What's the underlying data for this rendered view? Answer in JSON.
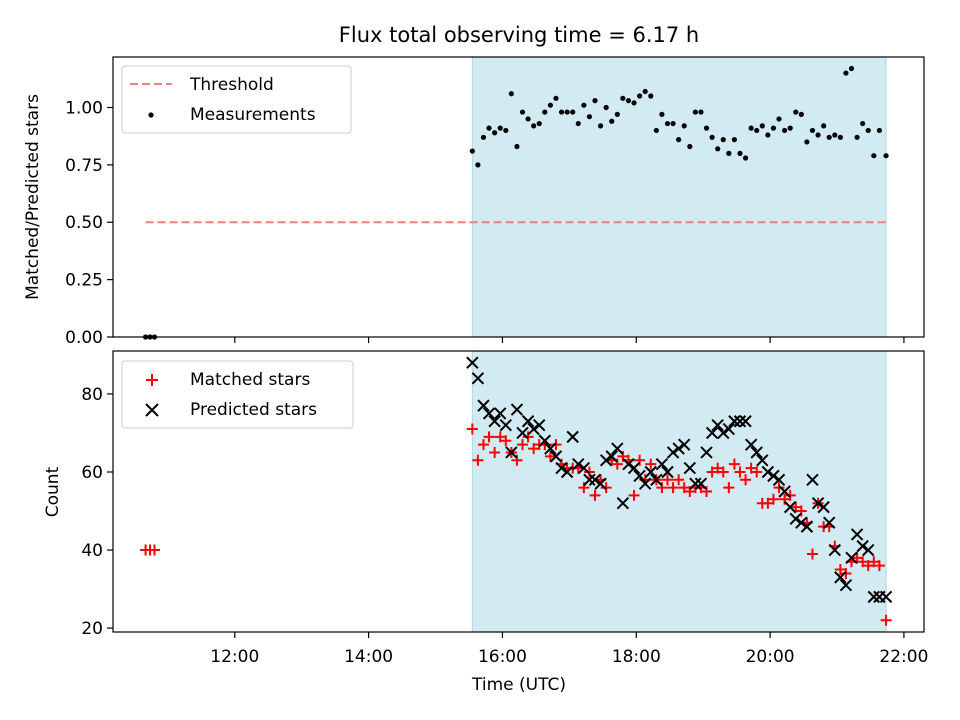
{
  "title": "Flux total observing time = 6.17 h",
  "colors": {
    "threshold": "#f07f7f",
    "measurements": "#000000",
    "matched": "#ff0000",
    "predicted": "#000000",
    "shade": "#add8e6"
  },
  "chart_data": [
    {
      "type": "scatter",
      "ylabel": "Matched/Predicted stars",
      "xlim_hours": [
        10.18,
        22.3
      ],
      "ylim": [
        0,
        1.22
      ],
      "yticks": [
        "0.00",
        "0.25",
        "0.50",
        "0.75",
        "1.00"
      ],
      "yticks_values": [
        0,
        0.25,
        0.5,
        0.75,
        1.0
      ],
      "shaded_span": [
        "15:33",
        "21:44"
      ],
      "legend_position": "upper-left",
      "threshold": {
        "name": "Threshold",
        "y": 0.5,
        "x": [
          "10:40",
          "21:44"
        ]
      },
      "measurements": {
        "name": "Measurements",
        "x": [
          "10:40",
          "10:44",
          "10:48",
          "15:33",
          "15:38",
          "15:43",
          "15:48",
          "15:53",
          "15:58",
          "16:03",
          "16:08",
          "16:13",
          "16:18",
          "16:23",
          "16:28",
          "16:33",
          "16:38",
          "16:43",
          "16:48",
          "16:53",
          "16:58",
          "17:03",
          "17:08",
          "17:13",
          "17:18",
          "17:23",
          "17:28",
          "17:33",
          "17:38",
          "17:43",
          "17:48",
          "17:53",
          "17:58",
          "18:03",
          "18:08",
          "18:13",
          "18:18",
          "18:23",
          "18:28",
          "18:33",
          "18:38",
          "18:43",
          "18:48",
          "18:53",
          "18:58",
          "19:03",
          "19:08",
          "19:13",
          "19:18",
          "19:23",
          "19:28",
          "19:33",
          "19:38",
          "19:43",
          "19:48",
          "19:53",
          "19:58",
          "20:03",
          "20:08",
          "20:13",
          "20:18",
          "20:23",
          "20:28",
          "20:33",
          "20:38",
          "20:43",
          "20:48",
          "20:53",
          "20:58",
          "21:03",
          "21:08",
          "21:13",
          "21:18",
          "21:23",
          "21:28",
          "21:33",
          "21:38",
          "21:44"
        ],
        "y": [
          0,
          0,
          0,
          0.81,
          0.75,
          0.87,
          0.91,
          0.89,
          0.91,
          0.9,
          1.06,
          0.83,
          0.98,
          0.95,
          0.92,
          0.93,
          0.98,
          1.01,
          1.04,
          0.98,
          0.98,
          0.98,
          0.93,
          1.01,
          0.96,
          1.03,
          0.92,
          1.0,
          0.94,
          0.97,
          1.04,
          1.03,
          1.02,
          1.05,
          1.07,
          1.05,
          0.9,
          0.97,
          0.93,
          0.93,
          0.86,
          0.92,
          0.83,
          0.98,
          0.98,
          0.91,
          0.87,
          0.82,
          0.86,
          0.8,
          0.86,
          0.8,
          0.78,
          0.91,
          0.9,
          0.92,
          0.88,
          0.91,
          0.95,
          0.9,
          0.91,
          0.98,
          0.97,
          0.85,
          0.9,
          0.88,
          0.92,
          0.87,
          0.88,
          0.87,
          1.15,
          1.17,
          0.87,
          0.93,
          0.9,
          0.79,
          0.9,
          0.79
        ]
      }
    },
    {
      "type": "scatter",
      "xlabel": "Time (UTC)",
      "ylabel": "Count",
      "xlim_hours": [
        10.18,
        22.3
      ],
      "ylim": [
        19,
        91
      ],
      "xticks": [
        "12:00",
        "14:00",
        "16:00",
        "18:00",
        "20:00",
        "22:00"
      ],
      "xticks_hours": [
        12,
        14,
        16,
        18,
        20,
        22
      ],
      "yticks": [
        "20",
        "40",
        "60",
        "80"
      ],
      "yticks_values": [
        20,
        40,
        60,
        80
      ],
      "shaded_span": [
        "15:33",
        "21:44"
      ],
      "legend_position": "upper-left",
      "series": [
        {
          "name": "Matched stars",
          "x": [
            "10:40",
            "10:44",
            "10:48",
            "15:33",
            "15:38",
            "15:43",
            "15:48",
            "15:53",
            "15:58",
            "16:03",
            "16:08",
            "16:13",
            "16:18",
            "16:23",
            "16:28",
            "16:33",
            "16:38",
            "16:43",
            "16:48",
            "16:53",
            "16:58",
            "17:03",
            "17:08",
            "17:13",
            "17:18",
            "17:23",
            "17:28",
            "17:33",
            "17:38",
            "17:43",
            "17:48",
            "17:53",
            "17:58",
            "18:03",
            "18:08",
            "18:13",
            "18:18",
            "18:23",
            "18:28",
            "18:33",
            "18:38",
            "18:43",
            "18:48",
            "18:53",
            "18:58",
            "19:03",
            "19:08",
            "19:13",
            "19:18",
            "19:23",
            "19:28",
            "19:33",
            "19:38",
            "19:43",
            "19:48",
            "19:53",
            "19:58",
            "20:03",
            "20:08",
            "20:13",
            "20:18",
            "20:23",
            "20:28",
            "20:33",
            "20:38",
            "20:43",
            "20:48",
            "20:53",
            "20:58",
            "21:03",
            "21:08",
            "21:13",
            "21:18",
            "21:23",
            "21:28",
            "21:33",
            "21:38",
            "21:44"
          ],
          "y": [
            40,
            40,
            40,
            71,
            63,
            67,
            69,
            65,
            69,
            68,
            65,
            63,
            67,
            69,
            66,
            67,
            67,
            64,
            67,
            62,
            61,
            61,
            61,
            56,
            60,
            54,
            58,
            56,
            63,
            62,
            64,
            63,
            54,
            63,
            58,
            62,
            58,
            56,
            58,
            56,
            58,
            56,
            55,
            56,
            56,
            55,
            60,
            61,
            60,
            56,
            62,
            60,
            58,
            61,
            60,
            52,
            52,
            53,
            56,
            53,
            54,
            51,
            50,
            47,
            39,
            52,
            46,
            46,
            41,
            35,
            34,
            37,
            38,
            37,
            36,
            37,
            36,
            22
          ]
        },
        {
          "name": "Predicted stars",
          "x": [
            "15:33",
            "15:38",
            "15:43",
            "15:48",
            "15:53",
            "15:58",
            "16:03",
            "16:08",
            "16:13",
            "16:18",
            "16:23",
            "16:28",
            "16:33",
            "16:38",
            "16:43",
            "16:48",
            "16:53",
            "16:58",
            "17:03",
            "17:08",
            "17:13",
            "17:18",
            "17:23",
            "17:28",
            "17:33",
            "17:38",
            "17:43",
            "17:48",
            "17:53",
            "17:58",
            "18:03",
            "18:08",
            "18:13",
            "18:18",
            "18:23",
            "18:28",
            "18:33",
            "18:38",
            "18:43",
            "18:48",
            "18:53",
            "18:58",
            "19:03",
            "19:08",
            "19:13",
            "19:18",
            "19:23",
            "19:28",
            "19:33",
            "19:38",
            "19:43",
            "19:48",
            "19:53",
            "19:58",
            "20:03",
            "20:08",
            "20:13",
            "20:18",
            "20:23",
            "20:28",
            "20:33",
            "20:38",
            "20:43",
            "20:48",
            "20:53",
            "20:58",
            "21:03",
            "21:08",
            "21:13",
            "21:18",
            "21:23",
            "21:28",
            "21:33",
            "21:38",
            "21:44"
          ],
          "y": [
            88,
            84,
            77,
            75,
            73,
            75,
            72,
            65,
            76,
            70,
            73,
            71,
            72,
            68,
            66,
            64,
            61,
            60,
            69,
            62,
            61,
            58,
            58,
            57,
            63,
            64,
            66,
            52,
            62,
            61,
            59,
            57,
            60,
            58,
            62,
            60,
            65,
            66,
            67,
            61,
            57,
            57,
            65,
            70,
            72,
            70,
            71,
            73,
            73,
            73,
            67,
            65,
            63,
            60,
            59,
            58,
            55,
            51,
            48,
            47,
            46,
            58,
            52,
            51,
            47,
            40,
            33,
            31,
            38,
            44,
            41,
            40,
            28,
            28,
            28
          ]
        }
      ]
    }
  ]
}
